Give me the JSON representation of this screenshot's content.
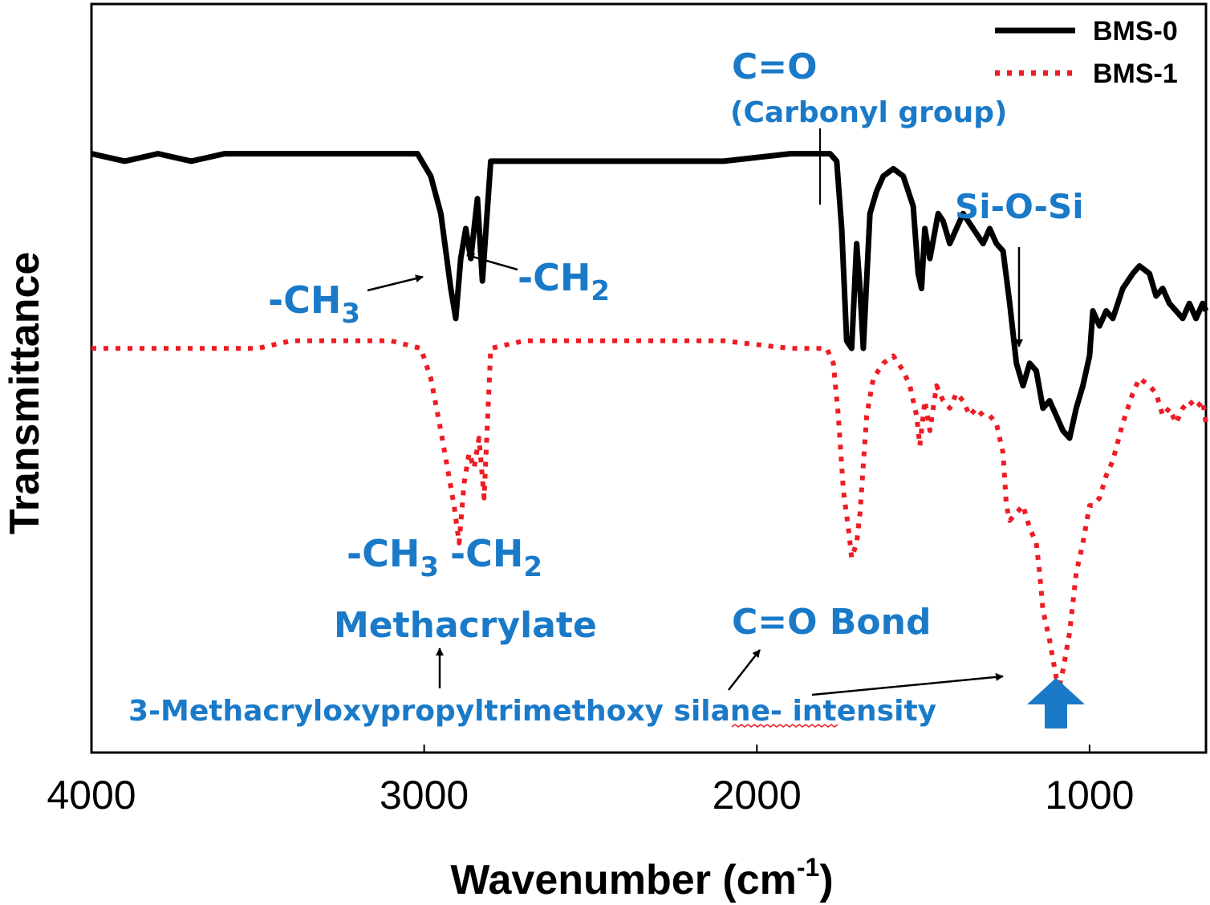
{
  "chart_data": {
    "type": "line",
    "title": "",
    "xlabel": "Wavenumber (cm",
    "xlabel_sup": "-1",
    "xlabel_close": ")",
    "ylabel": "Transmittance",
    "xlim": [
      4000,
      650
    ],
    "ylim": [
      0,
      1
    ],
    "x_reversed": true,
    "xticks": [
      4000,
      3000,
      2000,
      1000
    ],
    "y_tick_labels_shown": false,
    "grid": false,
    "legend": {
      "position": "top-right"
    },
    "series": [
      {
        "name": "BMS-0",
        "color": "#000000",
        "style": "solid",
        "x": [
          4000,
          3900,
          3800,
          3700,
          3600,
          3500,
          3400,
          3100,
          3020,
          2980,
          2950,
          2920,
          2905,
          2890,
          2875,
          2860,
          2840,
          2825,
          2800,
          2700,
          2500,
          2300,
          2100,
          1900,
          1800,
          1780,
          1760,
          1745,
          1730,
          1715,
          1700,
          1690,
          1680,
          1660,
          1640,
          1620,
          1590,
          1560,
          1530,
          1515,
          1505,
          1495,
          1480,
          1455,
          1440,
          1420,
          1400,
          1380,
          1350,
          1320,
          1300,
          1280,
          1260,
          1240,
          1220,
          1200,
          1180,
          1160,
          1140,
          1120,
          1100,
          1080,
          1060,
          1040,
          1020,
          1000,
          990,
          970,
          950,
          930,
          900,
          870,
          850,
          820,
          800,
          780,
          760,
          740,
          720,
          700,
          680,
          660,
          650
        ],
        "y": [
          0.8,
          0.79,
          0.8,
          0.79,
          0.8,
          0.8,
          0.8,
          0.8,
          0.8,
          0.77,
          0.72,
          0.62,
          0.58,
          0.66,
          0.7,
          0.66,
          0.74,
          0.63,
          0.79,
          0.79,
          0.79,
          0.79,
          0.79,
          0.8,
          0.8,
          0.8,
          0.79,
          0.7,
          0.55,
          0.54,
          0.68,
          0.62,
          0.54,
          0.72,
          0.75,
          0.77,
          0.78,
          0.77,
          0.73,
          0.64,
          0.62,
          0.7,
          0.66,
          0.72,
          0.71,
          0.68,
          0.7,
          0.72,
          0.7,
          0.68,
          0.7,
          0.68,
          0.67,
          0.6,
          0.52,
          0.49,
          0.52,
          0.51,
          0.46,
          0.47,
          0.45,
          0.43,
          0.42,
          0.46,
          0.49,
          0.53,
          0.59,
          0.57,
          0.59,
          0.58,
          0.62,
          0.64,
          0.65,
          0.64,
          0.61,
          0.62,
          0.6,
          0.59,
          0.58,
          0.6,
          0.58,
          0.6,
          0.59
        ]
      },
      {
        "name": "BMS-1",
        "color": "#ee1c24",
        "style": "dotted",
        "x": [
          4000,
          3900,
          3800,
          3700,
          3600,
          3500,
          3400,
          3100,
          3010,
          2980,
          2950,
          2930,
          2910,
          2895,
          2880,
          2865,
          2850,
          2835,
          2820,
          2800,
          2700,
          2500,
          2300,
          2100,
          1900,
          1790,
          1770,
          1755,
          1740,
          1725,
          1715,
          1700,
          1690,
          1670,
          1650,
          1620,
          1590,
          1560,
          1540,
          1520,
          1510,
          1495,
          1480,
          1460,
          1440,
          1420,
          1400,
          1380,
          1360,
          1340,
          1320,
          1300,
          1280,
          1260,
          1250,
          1240,
          1220,
          1200,
          1180,
          1160,
          1150,
          1140,
          1120,
          1100,
          1090,
          1080,
          1060,
          1040,
          1020,
          1000,
          990,
          970,
          950,
          930,
          900,
          870,
          850,
          820,
          800,
          780,
          760,
          740,
          720,
          700,
          680,
          660,
          650
        ],
        "y": [
          0.54,
          0.54,
          0.54,
          0.54,
          0.54,
          0.54,
          0.55,
          0.55,
          0.54,
          0.5,
          0.43,
          0.38,
          0.33,
          0.28,
          0.36,
          0.4,
          0.38,
          0.42,
          0.34,
          0.54,
          0.55,
          0.55,
          0.55,
          0.55,
          0.54,
          0.54,
          0.52,
          0.45,
          0.35,
          0.3,
          0.26,
          0.28,
          0.32,
          0.45,
          0.5,
          0.52,
          0.53,
          0.51,
          0.49,
          0.45,
          0.41,
          0.47,
          0.43,
          0.49,
          0.47,
          0.46,
          0.48,
          0.47,
          0.45,
          0.46,
          0.45,
          0.45,
          0.44,
          0.4,
          0.33,
          0.31,
          0.32,
          0.33,
          0.3,
          0.28,
          0.24,
          0.19,
          0.15,
          0.1,
          0.09,
          0.11,
          0.16,
          0.24,
          0.28,
          0.33,
          0.33,
          0.34,
          0.37,
          0.39,
          0.44,
          0.48,
          0.5,
          0.49,
          0.48,
          0.45,
          0.46,
          0.44,
          0.46,
          0.47,
          0.46,
          0.47,
          0.44
        ]
      }
    ],
    "annotations": {
      "co_top": "C=O",
      "carbonyl": "(Carbonyl group)",
      "sio": "Si-O-Si",
      "ch3_top": "-CH",
      "ch3_top_sub": "3",
      "ch2_top": "-CH",
      "ch2_top_sub": "2",
      "ch3_bottom": "-CH",
      "ch3_bottom_sub": "3",
      "ch2_bottom": "-CH",
      "ch2_bottom_sub": "2",
      "methacrylate": "Methacrylate",
      "co_bond": "C=O Bond",
      "silane_line": "3-Methacryloxypropyltrimethoxy silane- intensity"
    },
    "colors": {
      "annotation": "#1a7ac8",
      "arrow": "#000000"
    }
  }
}
